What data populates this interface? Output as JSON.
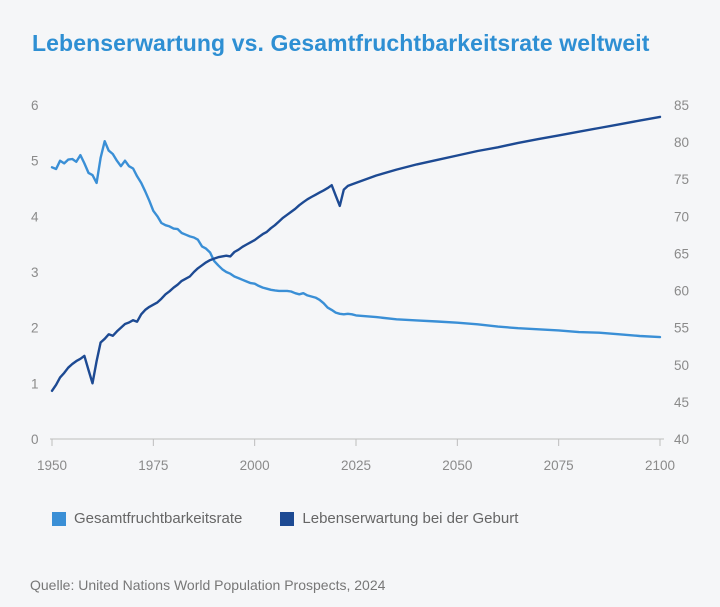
{
  "title": "Lebenserwartung vs. Gesamtfruchtbarkeitsrate weltweit",
  "source": "Quelle: United Nations World Population Prospects, 2024",
  "colors": {
    "tfr": "#3a8fd6",
    "life": "#1d4a93"
  },
  "chart_data": {
    "type": "line",
    "x_ticks": [
      "1950",
      "1975",
      "2000",
      "2025",
      "2050",
      "2075",
      "2100"
    ],
    "y_left_ticks": [
      "0",
      "1",
      "2",
      "3",
      "4",
      "5",
      "6"
    ],
    "y_right_ticks": [
      "40",
      "45",
      "50",
      "55",
      "60",
      "65",
      "70",
      "75",
      "80",
      "85"
    ],
    "ylim_left": [
      0,
      6
    ],
    "ylim_right": [
      40,
      85
    ],
    "xlim": [
      1950,
      2100
    ],
    "legend_position": "bottom",
    "series": [
      {
        "name": "Gesamtfruchtbarkeitsrate",
        "axis": "left",
        "x": [
          1950,
          1951,
          1952,
          1953,
          1954,
          1955,
          1956,
          1957,
          1958,
          1959,
          1960,
          1961,
          1962,
          1963,
          1964,
          1965,
          1966,
          1967,
          1968,
          1969,
          1970,
          1971,
          1972,
          1973,
          1974,
          1975,
          1976,
          1977,
          1978,
          1979,
          1980,
          1981,
          1982,
          1983,
          1984,
          1985,
          1986,
          1987,
          1988,
          1989,
          1990,
          1991,
          1992,
          1993,
          1994,
          1995,
          1996,
          1997,
          1998,
          1999,
          2000,
          2001,
          2002,
          2003,
          2004,
          2005,
          2006,
          2007,
          2008,
          2009,
          2010,
          2011,
          2012,
          2013,
          2014,
          2015,
          2016,
          2017,
          2018,
          2019,
          2020,
          2021,
          2022,
          2023,
          2024,
          2025,
          2030,
          2035,
          2040,
          2045,
          2050,
          2055,
          2060,
          2065,
          2070,
          2075,
          2080,
          2085,
          2090,
          2095,
          2100
        ],
        "values": [
          4.88,
          4.85,
          5.0,
          4.95,
          5.02,
          5.03,
          4.98,
          5.1,
          4.95,
          4.78,
          4.74,
          4.6,
          5.05,
          5.35,
          5.18,
          5.12,
          5.0,
          4.9,
          5.0,
          4.9,
          4.86,
          4.72,
          4.6,
          4.45,
          4.28,
          4.1,
          4.0,
          3.88,
          3.84,
          3.82,
          3.78,
          3.77,
          3.7,
          3.67,
          3.64,
          3.62,
          3.58,
          3.46,
          3.42,
          3.35,
          3.2,
          3.12,
          3.05,
          3.0,
          2.97,
          2.92,
          2.89,
          2.86,
          2.83,
          2.8,
          2.79,
          2.75,
          2.72,
          2.7,
          2.68,
          2.67,
          2.66,
          2.66,
          2.66,
          2.65,
          2.62,
          2.6,
          2.62,
          2.58,
          2.56,
          2.54,
          2.5,
          2.44,
          2.36,
          2.32,
          2.27,
          2.25,
          2.24,
          2.25,
          2.24,
          2.22,
          2.19,
          2.15,
          2.13,
          2.11,
          2.09,
          2.06,
          2.02,
          1.99,
          1.97,
          1.95,
          1.92,
          1.91,
          1.88,
          1.85,
          1.83
        ]
      },
      {
        "name": "Lebenserwartung bei der Geburt",
        "axis": "right",
        "x": [
          1950,
          1951,
          1952,
          1953,
          1954,
          1955,
          1956,
          1957,
          1958,
          1959,
          1960,
          1961,
          1962,
          1963,
          1964,
          1965,
          1966,
          1967,
          1968,
          1969,
          1970,
          1971,
          1972,
          1973,
          1974,
          1975,
          1976,
          1977,
          1978,
          1979,
          1980,
          1981,
          1982,
          1983,
          1984,
          1985,
          1986,
          1987,
          1988,
          1989,
          1990,
          1991,
          1992,
          1993,
          1994,
          1995,
          1996,
          1997,
          1998,
          1999,
          2000,
          2001,
          2002,
          2003,
          2004,
          2005,
          2006,
          2007,
          2008,
          2009,
          2010,
          2011,
          2012,
          2013,
          2014,
          2015,
          2016,
          2017,
          2018,
          2019,
          2020,
          2021,
          2022,
          2023,
          2024,
          2025,
          2030,
          2035,
          2040,
          2045,
          2050,
          2055,
          2060,
          2065,
          2070,
          2075,
          2080,
          2085,
          2090,
          2095,
          2100
        ],
        "values": [
          46.5,
          47.3,
          48.3,
          48.9,
          49.6,
          50.1,
          50.5,
          50.8,
          51.2,
          49.3,
          47.5,
          50.5,
          53.0,
          53.5,
          54.1,
          53.9,
          54.5,
          55.0,
          55.5,
          55.7,
          56.0,
          55.8,
          56.8,
          57.4,
          57.8,
          58.1,
          58.4,
          58.9,
          59.5,
          59.9,
          60.4,
          60.8,
          61.3,
          61.6,
          61.9,
          62.5,
          63.0,
          63.4,
          63.8,
          64.1,
          64.3,
          64.5,
          64.6,
          64.7,
          64.6,
          65.2,
          65.5,
          65.9,
          66.2,
          66.5,
          66.8,
          67.2,
          67.6,
          67.9,
          68.4,
          68.8,
          69.3,
          69.8,
          70.2,
          70.6,
          71.0,
          71.5,
          71.9,
          72.3,
          72.6,
          72.9,
          73.2,
          73.5,
          73.8,
          74.2,
          72.8,
          71.4,
          73.6,
          74.1,
          74.3,
          74.5,
          75.5,
          76.3,
          77.0,
          77.6,
          78.2,
          78.8,
          79.3,
          79.9,
          80.4,
          80.9,
          81.4,
          81.9,
          82.4,
          82.9,
          83.4
        ]
      }
    ]
  }
}
